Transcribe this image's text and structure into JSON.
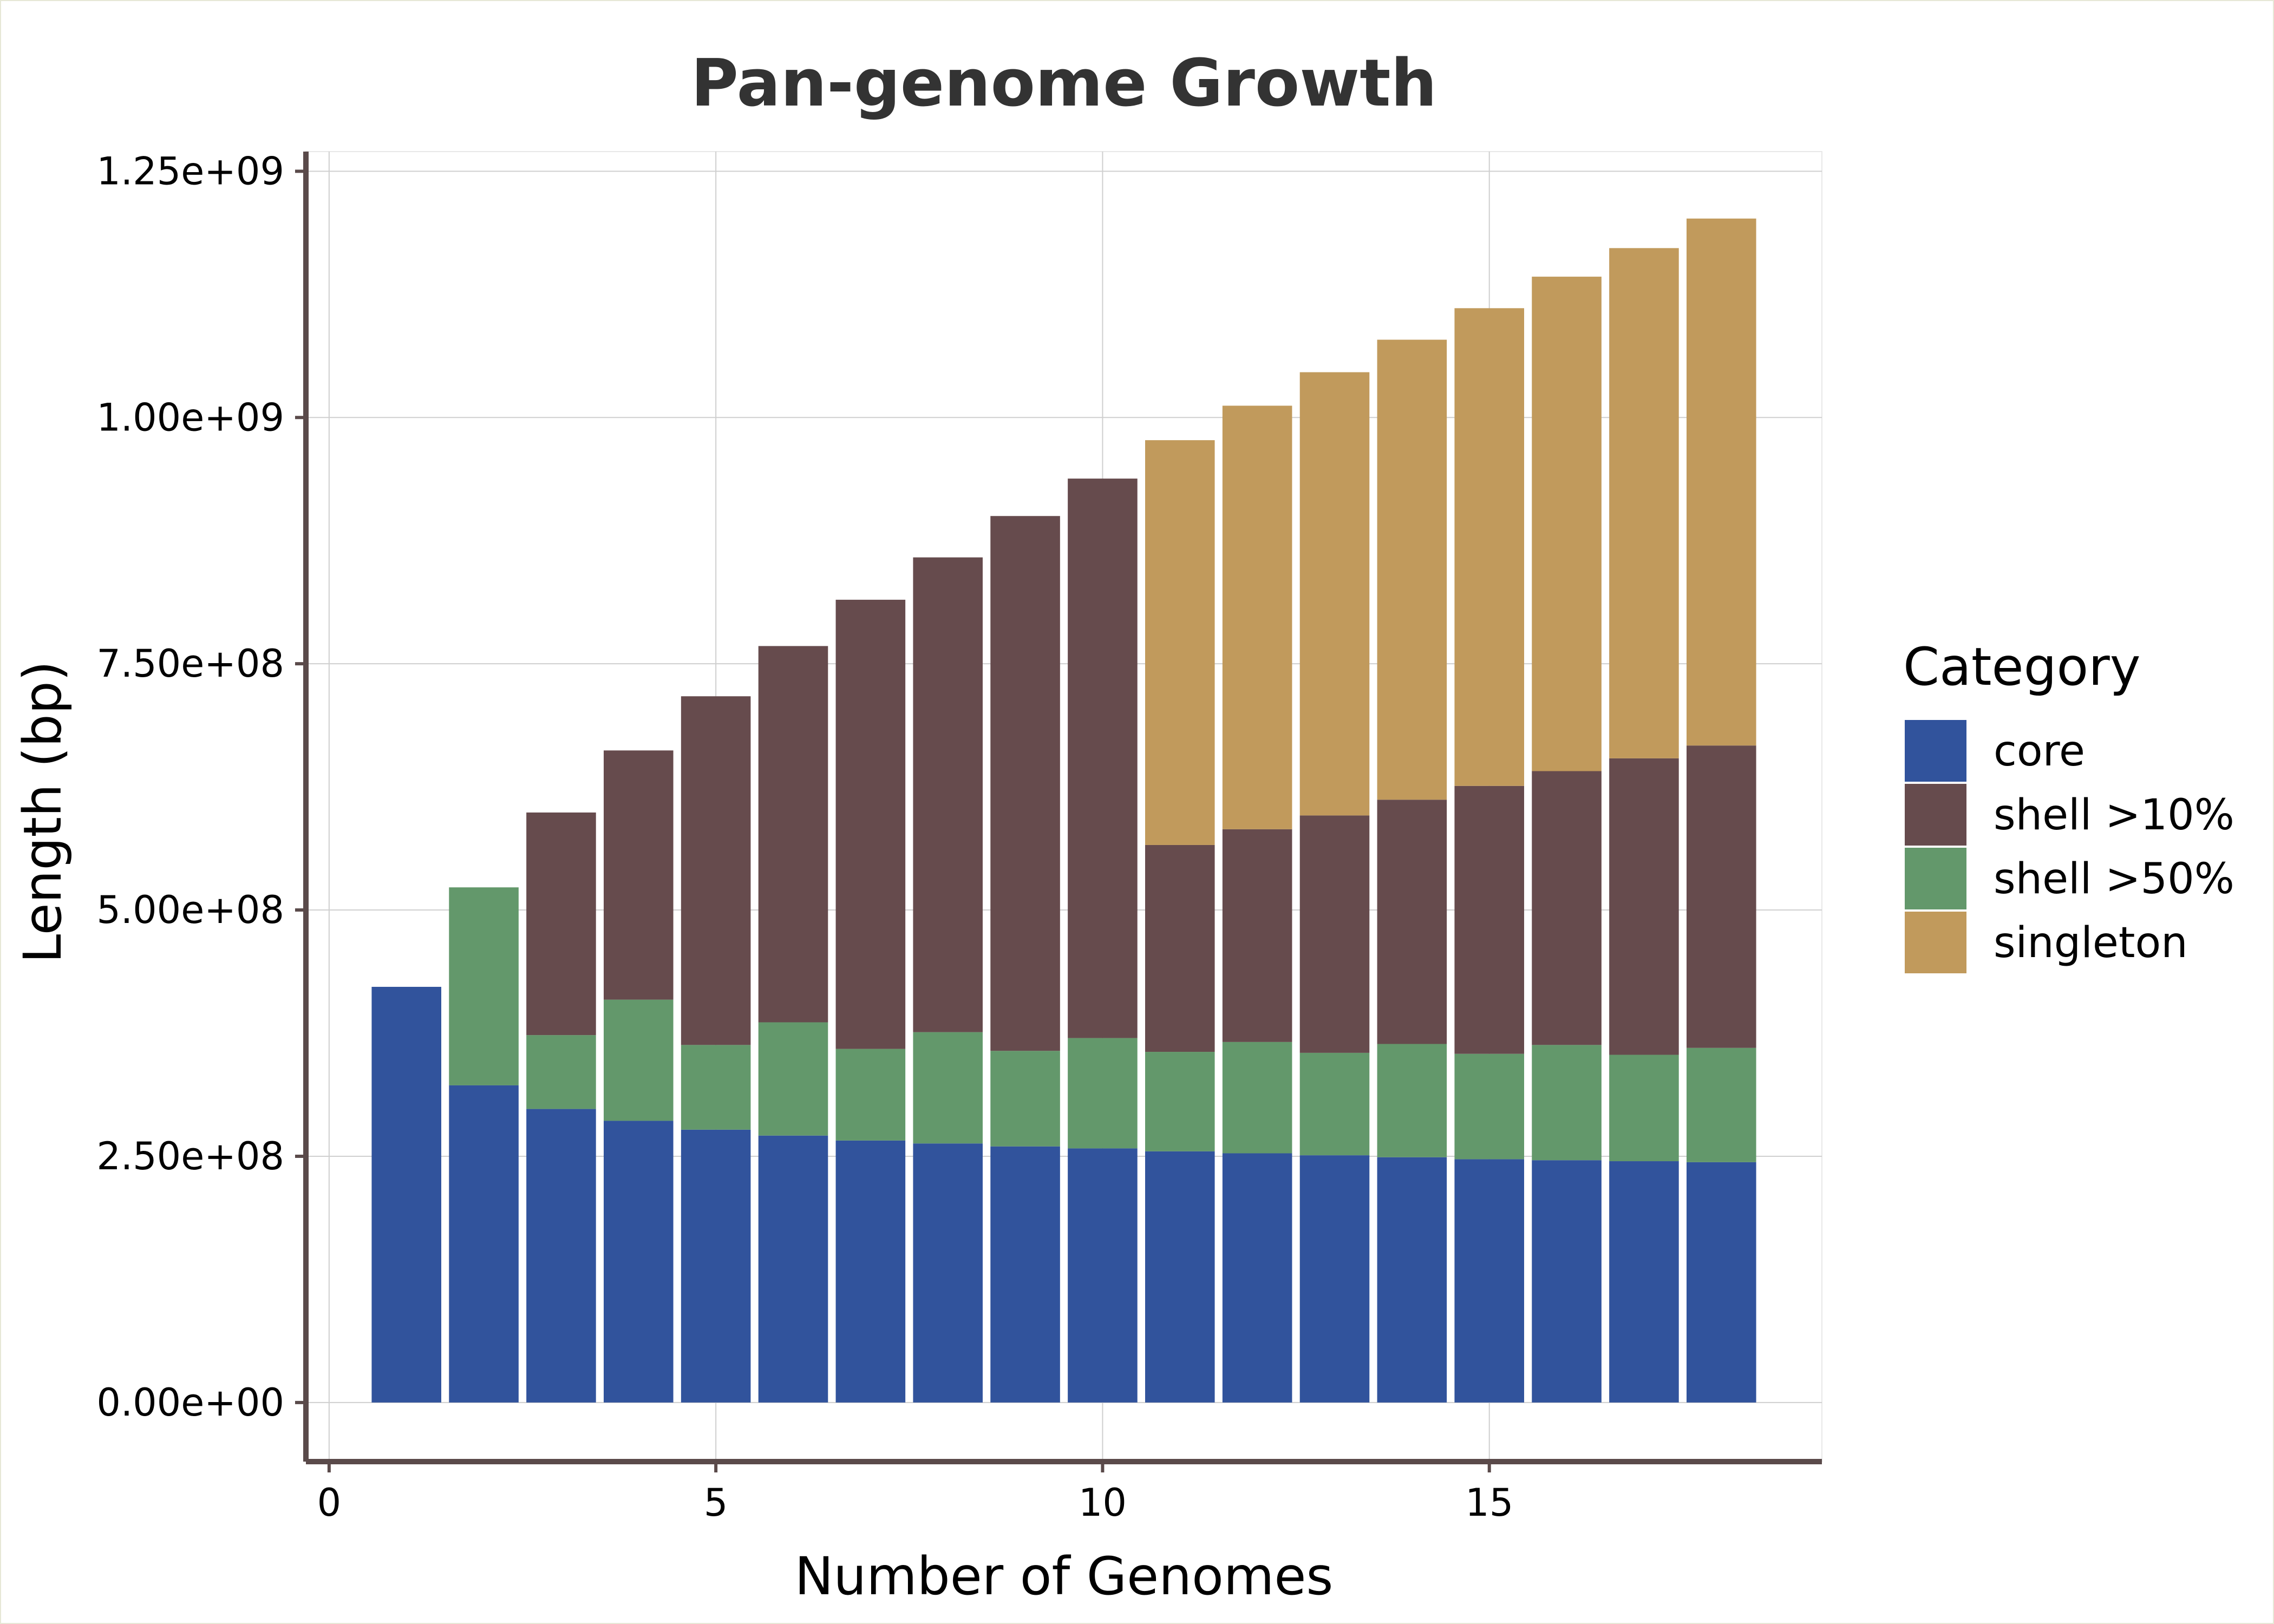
{
  "chart_data": {
    "type": "bar",
    "stacked": true,
    "title": "Pan-genome Growth",
    "xlabel": "Number of Genomes",
    "ylabel": "Length (bp)",
    "xlim": [
      -0.3,
      19.3
    ],
    "ylim": [
      -60000000.0,
      1270000000.0
    ],
    "x_ticks": [
      0,
      5,
      10,
      15
    ],
    "x_tick_labels": [
      "0",
      "5",
      "10",
      "15"
    ],
    "y_ticks": [
      0,
      250000000,
      500000000,
      750000000,
      1000000000,
      1250000000
    ],
    "y_tick_labels": [
      "0.00e+00",
      "2.50e+08",
      "5.00e+08",
      "7.50e+08",
      "1.00e+09",
      "1.25e+09"
    ],
    "grid": true,
    "legend_title": "Category",
    "legend_position": "right",
    "categories": [
      1,
      2,
      3,
      4,
      5,
      6,
      7,
      8,
      9,
      10,
      11,
      12,
      13,
      14,
      15,
      16,
      17,
      18
    ],
    "series": [
      {
        "name": "core",
        "color": "#31539c",
        "values": [
          422000000,
          322000000,
          298000000,
          286000000,
          277000000,
          271000000,
          266000000,
          263000000,
          260000000,
          258000000,
          255000000,
          253000000,
          251000000,
          249000000,
          247000000,
          246000000,
          245000000,
          244000000
        ]
      },
      {
        "name": "shell >50%",
        "color": "#63986b",
        "values": [
          0,
          201000000,
          75000000,
          123000000,
          86000000,
          115000000,
          93000000,
          113000000,
          97000000,
          112000000,
          101000000,
          113000000,
          104000000,
          115000000,
          107000000,
          117000000,
          108000000,
          116000000
        ]
      },
      {
        "name": "shell >10%",
        "color": "#664b4d",
        "values": [
          0,
          0,
          226000000,
          253000000,
          354000000,
          382000000,
          456000000,
          482000000,
          543000000,
          568000000,
          210000000,
          216000000,
          241000000,
          248000000,
          272000000,
          278000000,
          301000000,
          307000000
        ]
      },
      {
        "name": "singleton",
        "color": "#c19a5c",
        "values": [
          0,
          0,
          0,
          0,
          0,
          0,
          0,
          0,
          0,
          0,
          411000000,
          430000000,
          450000000,
          467000000,
          485000000,
          502000000,
          518000000,
          535000000
        ]
      }
    ],
    "legend_order": [
      "core",
      "shell >10%",
      "shell >50%",
      "singleton"
    ]
  }
}
